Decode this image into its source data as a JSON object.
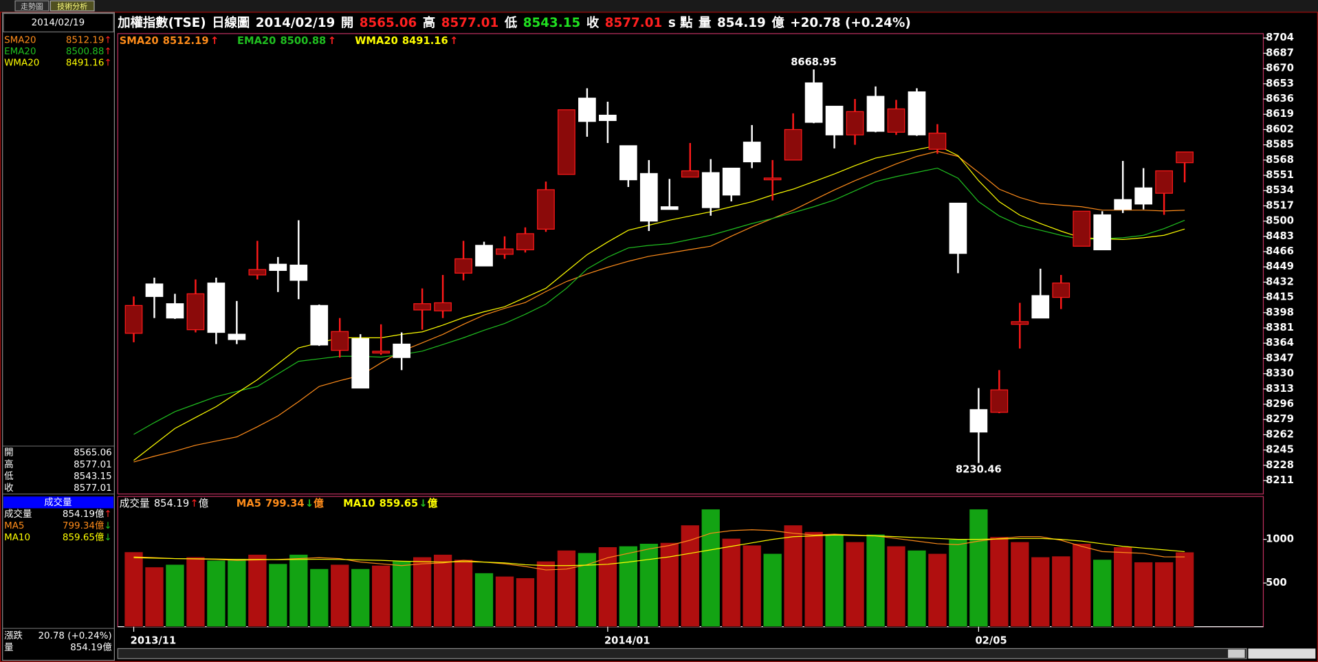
{
  "tabs": [
    "走勢圖",
    "技術分析"
  ],
  "header": [
    {
      "text": "加權指數(TSE)",
      "color": "#ffffff"
    },
    {
      "text": "日線圖",
      "color": "#ffffff"
    },
    {
      "text": "2014/02/19",
      "color": "#ffffff"
    },
    {
      "text": "開",
      "color": "#ffffff"
    },
    {
      "text": "8565.06",
      "color": "#ff2020"
    },
    {
      "text": "高",
      "color": "#ffffff"
    },
    {
      "text": "8577.01",
      "color": "#ff2020"
    },
    {
      "text": "低",
      "color": "#ffffff"
    },
    {
      "text": "8543.15",
      "color": "#20e020"
    },
    {
      "text": "收",
      "color": "#ffffff"
    },
    {
      "text": "8577.01",
      "color": "#ff2020"
    },
    {
      "text": "s 點",
      "color": "#ffffff"
    },
    {
      "text": "量",
      "color": "#ffffff"
    },
    {
      "text": "854.19",
      "color": "#ffffff"
    },
    {
      "text": "億",
      "color": "#ffffff"
    },
    {
      "text": "+20.78 (+0.24%)",
      "color": "#ffffff"
    }
  ],
  "side_panel": {
    "date": "2014/02/19",
    "indicators": [
      {
        "name": "SMA20",
        "value": "8512.19",
        "arrow": "↑",
        "color": "#ff8c1a",
        "arrow_color": "#ff2020"
      },
      {
        "name": "EMA20",
        "value": "8500.88",
        "arrow": "↑",
        "color": "#20c020",
        "arrow_color": "#ff2020"
      },
      {
        "name": "WMA20",
        "value": "8491.16",
        "arrow": "↑",
        "color": "#ffff00",
        "arrow_color": "#ff2020"
      }
    ],
    "quote": [
      [
        "開",
        "8565.06"
      ],
      [
        "高",
        "8577.01"
      ],
      [
        "低",
        "8543.15"
      ],
      [
        "收",
        "8577.01"
      ]
    ],
    "volume_title": "成交量",
    "volume_rows": [
      {
        "name": "成交量",
        "value": "854.19億",
        "arrow": "↑",
        "color": "#ffffff",
        "arrow_color": "#ff2020"
      },
      {
        "name": "MA5",
        "value": "799.34億",
        "arrow": "↓",
        "color": "#ff8c1a",
        "arrow_color": "#20c020"
      },
      {
        "name": "MA10",
        "value": "859.65億",
        "arrow": "↓",
        "color": "#ffff00",
        "arrow_color": "#20c020"
      }
    ],
    "footer": [
      [
        "漲跌",
        "20.78 (+0.24%)"
      ],
      [
        "量",
        "854.19億"
      ]
    ]
  },
  "chart_data": [
    {
      "type": "candlestick",
      "open": [
        8375,
        8430,
        8408,
        8379,
        8431,
        8374,
        8440,
        8452,
        8451,
        8406,
        8356,
        8369,
        8353,
        8363,
        8401,
        8400,
        8442,
        8473,
        8463,
        8468,
        8491,
        8552,
        8637,
        8618,
        8584,
        8553,
        8516,
        8549,
        8554,
        8559,
        8588,
        8546,
        8568,
        8654,
        8628,
        8596,
        8639,
        8599,
        8644,
        8580,
        8520,
        8290,
        8287,
        8385,
        8417,
        8415,
        8472,
        8507,
        8524,
        8537,
        8531,
        8565.06
      ],
      "high": [
        8416,
        8437,
        8419,
        8435,
        8437,
        8411,
        8478,
        8460,
        8501,
        8407,
        8392,
        8374,
        8385,
        8376,
        8425,
        8440,
        8478,
        8477,
        8483,
        8493,
        8544,
        8624,
        8648,
        8633,
        8584,
        8568,
        8547,
        8587,
        8569,
        8559,
        8607,
        8568,
        8620,
        8668.95,
        8628,
        8636,
        8650,
        8635,
        8648,
        8608,
        8520,
        8314,
        8334,
        8409,
        8447,
        8440,
        8511,
        8511,
        8567,
        8559,
        8556,
        8577.01
      ],
      "low": [
        8365,
        8392,
        8391,
        8376,
        8363,
        8363,
        8435,
        8421,
        8413,
        8361,
        8348,
        8314,
        8351,
        8334,
        8379,
        8392,
        8434,
        8450,
        8458,
        8465,
        8488,
        8552,
        8594,
        8587,
        8538,
        8489,
        8513,
        8549,
        8506,
        8522,
        8559,
        8523,
        8568,
        8609,
        8581,
        8585,
        8599,
        8596,
        8595,
        8575,
        8442,
        8230.46,
        8286,
        8358,
        8392,
        8402,
        8472,
        8468,
        8509,
        8513,
        8507,
        8543.15
      ],
      "close": [
        8406,
        8416,
        8392,
        8419,
        8376,
        8368,
        8446,
        8445,
        8434,
        8362,
        8377,
        8314,
        8355,
        8348,
        8408,
        8409,
        8458,
        8450,
        8469,
        8486,
        8535,
        8624,
        8611,
        8612,
        8546,
        8500,
        8513,
        8556,
        8515,
        8529,
        8566,
        8548,
        8602,
        8610,
        8596,
        8622,
        8600,
        8625,
        8596,
        8598,
        8464,
        8265,
        8312,
        8388,
        8392,
        8431,
        8511,
        8468,
        8513,
        8519,
        8556,
        8577.01
      ],
      "up_color": "#8b0a0a",
      "up_border_color": "#ff1a1a",
      "down_color": "#ffffff",
      "series": [
        {
          "name": "SMA20",
          "color": "#ff8c1a",
          "arrow": "↑",
          "arrow_color": "#ff2020",
          "values": [
            8231.6,
            8238.1,
            8243.7,
            8250.3,
            8255.0,
            8259.6,
            8270.9,
            8283.0,
            8298.9,
            8315.8,
            8322.3,
            8327.9,
            8342.0,
            8355.1,
            8364.4,
            8373.8,
            8385.0,
            8395.3,
            8402.8,
            8409.3,
            8421.5,
            8432.7,
            8441.1,
            8448.6,
            8455.2,
            8460.8,
            8464.5,
            8468.3,
            8472.0,
            8483.2,
            8493.5,
            8502.9,
            8512.2,
            8523.5,
            8534.7,
            8545.0,
            8554.3,
            8563.7,
            8572.1,
            8577.7,
            8572.1,
            8554.3,
            8535.6,
            8526.3,
            8519.7,
            8517.8,
            8516.0,
            8512.2,
            8512.2,
            8512.2,
            8511.3,
            8512.19
          ]
        },
        {
          "name": "EMA20",
          "color": "#20c020",
          "arrow": "↑",
          "arrow_color": "#ff2020",
          "values": [
            8262.4,
            8275.5,
            8287.7,
            8296.1,
            8304.5,
            8310.2,
            8315.8,
            8329.8,
            8343.8,
            8346.6,
            8349.4,
            8349.4,
            8348.5,
            8351.3,
            8355.1,
            8362.5,
            8370.0,
            8378.4,
            8385.9,
            8396.2,
            8407.4,
            8425.2,
            8446.7,
            8459.8,
            8470.1,
            8472.9,
            8474.8,
            8479.5,
            8484.2,
            8490.7,
            8497.3,
            8502.9,
            8509.4,
            8516.0,
            8523.5,
            8533.7,
            8544.0,
            8549.6,
            8554.3,
            8559.0,
            8547.8,
            8521.6,
            8505.7,
            8495.4,
            8489.8,
            8484.2,
            8479.5,
            8480.4,
            8481.4,
            8484.2,
            8491.6,
            8500.88
          ]
        },
        {
          "name": "WMA20",
          "color": "#ffff00",
          "arrow": "↑",
          "arrow_color": "#ff2020",
          "values": [
            8233.4,
            8251.2,
            8269.0,
            8281.2,
            8293.3,
            8308.3,
            8323.3,
            8341.0,
            8358.8,
            8364.4,
            8370.0,
            8370.0,
            8370.0,
            8373.8,
            8376.6,
            8384.1,
            8392.5,
            8399.0,
            8404.6,
            8414.9,
            8425.2,
            8443.9,
            8462.6,
            8476.7,
            8489.8,
            8495.4,
            8501.0,
            8505.7,
            8510.4,
            8516.0,
            8521.6,
            8529.1,
            8535.6,
            8544.0,
            8552.5,
            8561.8,
            8570.2,
            8574.9,
            8579.6,
            8584.3,
            8573.0,
            8545.0,
            8521.6,
            8506.6,
            8497.3,
            8488.8,
            8481.4,
            8480.4,
            8479.5,
            8481.4,
            8484.2,
            8491.16
          ]
        }
      ],
      "ylim": [
        8196,
        8707
      ],
      "yticks": [
        8704,
        8687,
        8670,
        8653,
        8636,
        8619,
        8602,
        8585,
        8568,
        8551,
        8534,
        8517,
        8500,
        8483,
        8466,
        8449,
        8432,
        8415,
        8398,
        8381,
        8364,
        8347,
        8330,
        8313,
        8296,
        8279,
        8262,
        8245,
        8228,
        8211
      ]
    },
    {
      "type": "bar",
      "label": "成交量",
      "unit": "億",
      "arrow": "↑",
      "arrow_color": "#ff2020",
      "categories": [
        "2013/11",
        null,
        null,
        null,
        null,
        null,
        null,
        null,
        null,
        null,
        null,
        null,
        null,
        null,
        null,
        null,
        null,
        null,
        null,
        null,
        null,
        null,
        null,
        "2014/01",
        null,
        null,
        null,
        null,
        null,
        null,
        null,
        null,
        null,
        null,
        null,
        null,
        null,
        null,
        null,
        null,
        null,
        "02/05",
        null,
        null,
        null,
        null,
        null,
        null,
        null,
        null,
        null,
        null
      ],
      "values": [
        856,
        683,
        712,
        798,
        760,
        779,
        827,
        721,
        827,
        663,
        712,
        663,
        702,
        750,
        798,
        827,
        769,
        615,
        577,
        558,
        750,
        875,
        846,
        913,
        923,
        952,
        962,
        1163,
        1346,
        1010,
        933,
        837,
        1163,
        1087,
        1058,
        971,
        1058,
        923,
        875,
        837,
        1000,
        1346,
        1029,
        971,
        798,
        808,
        952,
        769,
        913,
        740,
        740,
        854.19
      ],
      "colors": [
        "#b00f0f",
        "#b00f0f",
        "#13a313",
        "#b00f0f",
        "#13a313",
        "#13a313",
        "#b00f0f",
        "#13a313",
        "#13a313",
        "#13a313",
        "#b00f0f",
        "#13a313",
        "#b00f0f",
        "#13a313",
        "#b00f0f",
        "#b00f0f",
        "#b00f0f",
        "#13a313",
        "#b00f0f",
        "#b00f0f",
        "#b00f0f",
        "#b00f0f",
        "#13a313",
        "#b00f0f",
        "#13a313",
        "#13a313",
        "#b00f0f",
        "#b00f0f",
        "#13a313",
        "#b00f0f",
        "#b00f0f",
        "#13a313",
        "#b00f0f",
        "#b00f0f",
        "#13a313",
        "#b00f0f",
        "#13a313",
        "#b00f0f",
        "#13a313",
        "#b00f0f",
        "#13a313",
        "#13a313",
        "#b00f0f",
        "#b00f0f",
        "#b00f0f",
        "#b00f0f",
        "#b00f0f",
        "#13a313",
        "#b00f0f",
        "#b00f0f",
        "#b00f0f",
        "#b00f0f"
      ],
      "series": [
        {
          "name": "MA5",
          "color": "#ff8c1a",
          "arrow": "↓",
          "arrow_color": "#20c020",
          "values": [
            800,
            790,
            780,
            775,
            770,
            760,
            765,
            770,
            780,
            790,
            780,
            740,
            720,
            700,
            720,
            730,
            760,
            740,
            720,
            690,
            650,
            660,
            710,
            790,
            840,
            890,
            930,
            990,
            1070,
            1100,
            1110,
            1100,
            1070,
            1050,
            1060,
            1050,
            1040,
            1010,
            980,
            950,
            940,
            980,
            1010,
            1030,
            1030,
            990,
            920,
            860,
            850,
            840,
            800,
            799.34
          ]
        },
        {
          "name": "MA10",
          "color": "#ffff00",
          "arrow": "↓",
          "arrow_color": "#20c020",
          "values": [
            790,
            785,
            780,
            778,
            775,
            770,
            770,
            768,
            770,
            772,
            770,
            765,
            760,
            750,
            745,
            740,
            745,
            740,
            730,
            710,
            700,
            700,
            705,
            715,
            740,
            770,
            800,
            840,
            880,
            920,
            960,
            1000,
            1030,
            1040,
            1050,
            1045,
            1040,
            1030,
            1020,
            1010,
            1000,
            1000,
            1005,
            1010,
            1010,
            1000,
            980,
            950,
            920,
            900,
            880,
            859.65
          ]
        }
      ],
      "ylim": [
        0,
        1481
      ],
      "yticks": [
        500,
        1000
      ]
    }
  ]
}
